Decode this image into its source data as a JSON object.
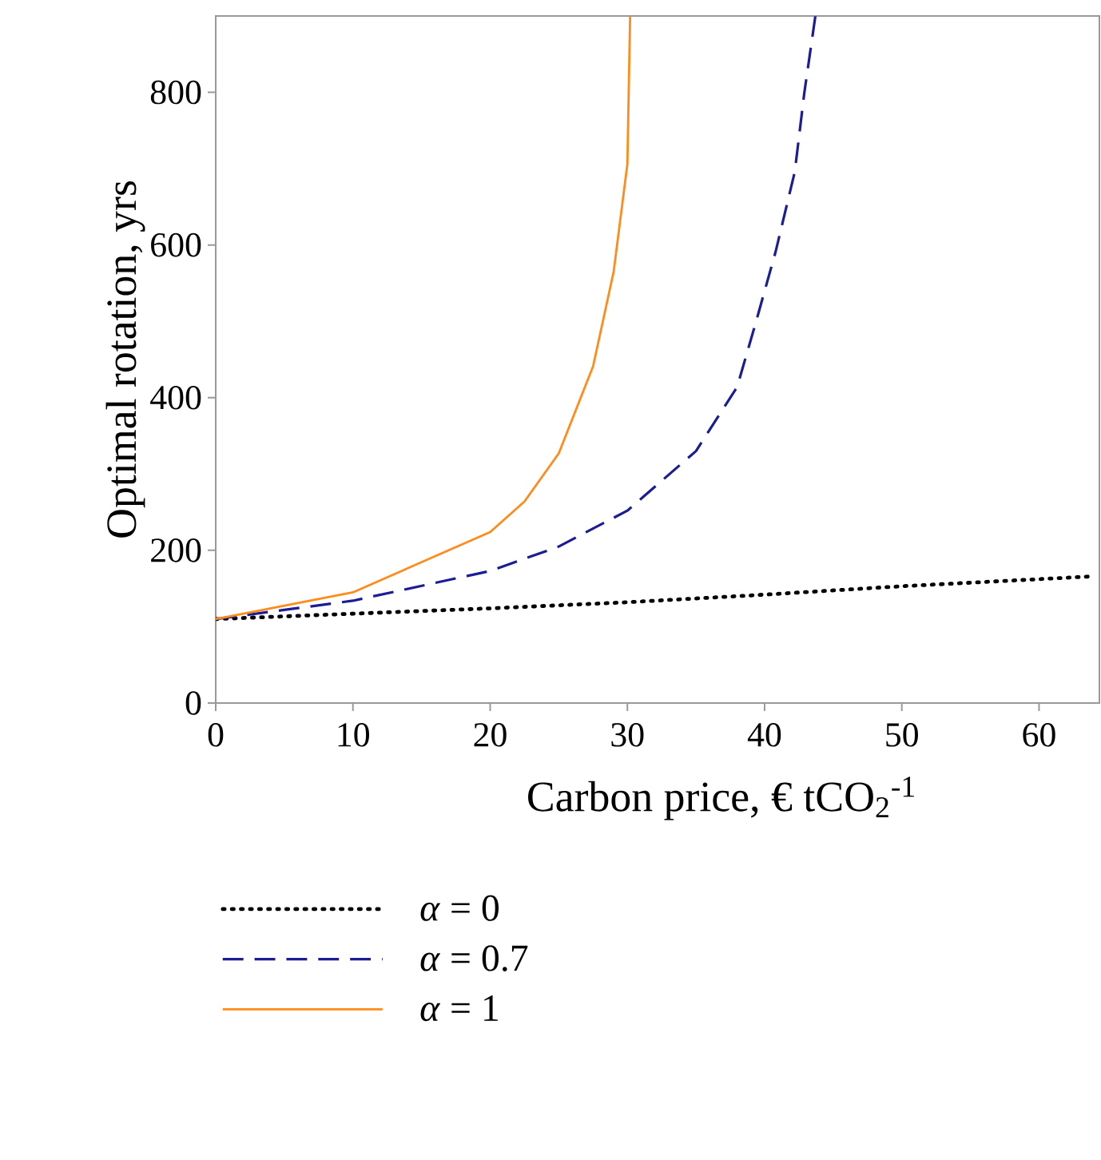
{
  "chart_data": {
    "type": "line",
    "xlabel": "Carbon price, € tCO$_{2}$$^{-1}$",
    "ylabel": "Optimal rotation, yrs",
    "xlim": [
      0,
      64.4
    ],
    "ylim": [
      0,
      900
    ],
    "xticks": [
      0,
      10,
      20,
      30,
      40,
      50,
      60
    ],
    "yticks": [
      0,
      200,
      400,
      600,
      800
    ],
    "legend": "bottom",
    "grid": false,
    "series": [
      {
        "name": "*α* = 0",
        "color": "#000000",
        "line_style": "dotted",
        "x": [
          0,
          10,
          20,
          30,
          40,
          50,
          64
        ],
        "values": [
          110,
          117,
          124,
          132,
          142,
          153,
          166
        ]
      },
      {
        "name": "*α* = 0.7",
        "color": "#1c1c94",
        "line_style": "dashed",
        "x": [
          0,
          5,
          10,
          20,
          25,
          30,
          35,
          38,
          39.4,
          40.8,
          42.2,
          42.9,
          43.7
        ],
        "values": [
          110,
          122,
          134,
          173,
          205,
          252,
          330,
          414,
          501,
          591,
          696,
          800,
          900
        ]
      },
      {
        "name": "*α* = 1",
        "color": "#ff8c1a",
        "line_style": "solid",
        "x": [
          0,
          10,
          20,
          22.5,
          25,
          27.5,
          29,
          30,
          30.2
        ],
        "values": [
          110,
          145,
          224,
          264,
          327,
          441,
          565,
          706,
          900
        ]
      }
    ]
  }
}
